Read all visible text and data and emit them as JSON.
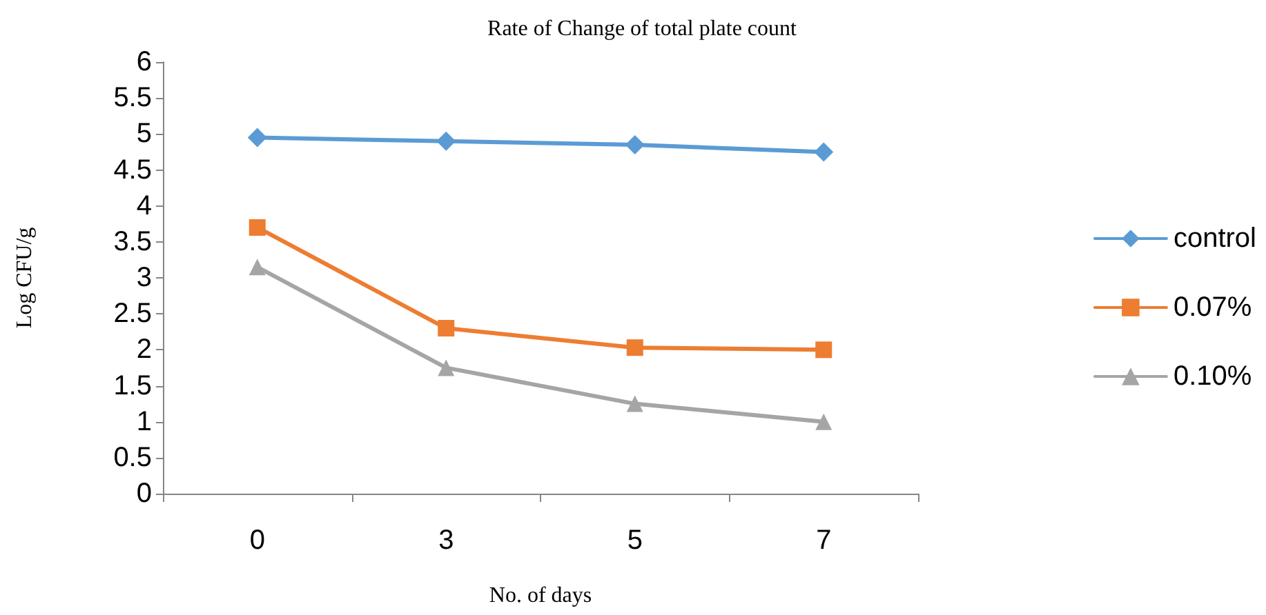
{
  "chart_data": {
    "type": "line",
    "title": "Rate of Change of total plate count",
    "xlabel": "No. of days",
    "ylabel": "Log CFU/g",
    "categories": [
      "0",
      "3",
      "5",
      "7"
    ],
    "series": [
      {
        "name": "control",
        "color": "#5b9bd5",
        "marker": "diamond",
        "values": [
          4.95,
          4.9,
          4.85,
          4.75
        ]
      },
      {
        "name": "0.07%",
        "color": "#ed7d31",
        "marker": "square",
        "values": [
          3.7,
          2.3,
          2.03,
          2.0
        ]
      },
      {
        "name": "0.10%",
        "color": "#a5a5a5",
        "marker": "triangle",
        "values": [
          3.15,
          1.75,
          1.25,
          1.0
        ]
      }
    ],
    "ylim": [
      0,
      6
    ],
    "yticks": [
      0,
      0.5,
      1,
      1.5,
      2,
      2.5,
      3,
      3.5,
      4,
      4.5,
      5,
      5.5,
      6
    ],
    "grid": false,
    "legend": "right",
    "line_style": "solid"
  }
}
